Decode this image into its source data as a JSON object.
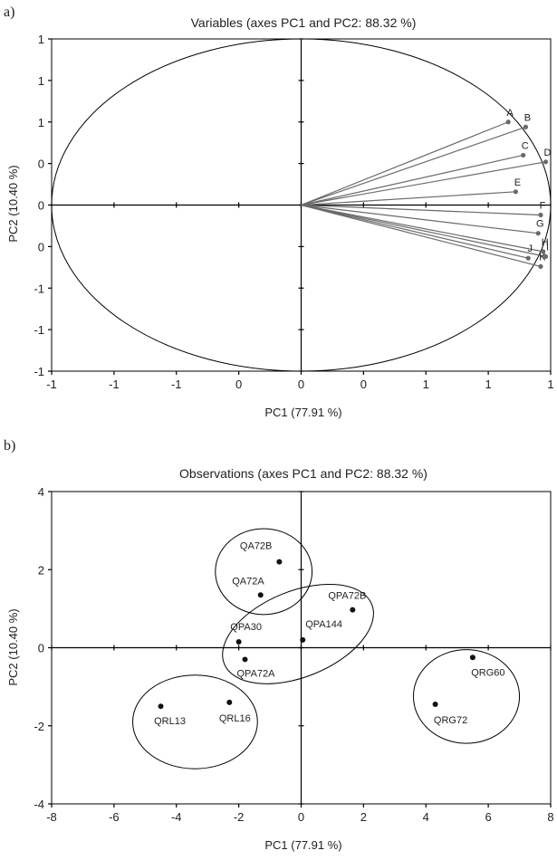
{
  "chart_data": [
    {
      "panel": "a)",
      "type": "scatter",
      "title": "Variables (axes PC1 and PC2: 88.32 %)",
      "xlabel": "PC1 (77.91 %)",
      "ylabel": "PC2 (10.40 %)",
      "xlim": [
        -1,
        1
      ],
      "ylim": [
        -1,
        1
      ],
      "x_tick_labels": [
        "-1",
        "-1",
        "-1",
        "0",
        "0",
        "0",
        "1",
        "1",
        "1"
      ],
      "y_tick_labels": [
        "1",
        "1",
        "1",
        "0",
        "0",
        "0",
        "-1",
        "-1",
        "-1"
      ],
      "correlation_circle": true,
      "grid": false,
      "points": [
        {
          "label": "A",
          "x": 0.83,
          "y": 0.5
        },
        {
          "label": "B",
          "x": 0.9,
          "y": 0.47
        },
        {
          "label": "C",
          "x": 0.89,
          "y": 0.3
        },
        {
          "label": "D",
          "x": 0.98,
          "y": 0.26
        },
        {
          "label": "E",
          "x": 0.86,
          "y": 0.08
        },
        {
          "label": "F",
          "x": 0.96,
          "y": -0.06
        },
        {
          "label": "G",
          "x": 0.95,
          "y": -0.17
        },
        {
          "label": "H",
          "x": 0.97,
          "y": -0.28
        },
        {
          "label": "I",
          "x": 0.98,
          "y": -0.31
        },
        {
          "label": "J",
          "x": 0.91,
          "y": -0.32
        },
        {
          "label": "K",
          "x": 0.96,
          "y": -0.37
        }
      ]
    },
    {
      "panel": "b)",
      "type": "scatter",
      "title": "Observations (axes PC1 and PC2: 88.32 %)",
      "xlabel": "PC1 (77.91 %)",
      "ylabel": "PC2 (10.40 %)",
      "xlim": [
        -8,
        8
      ],
      "ylim": [
        -4,
        4
      ],
      "x_ticks": [
        -8,
        -6,
        -4,
        -2,
        0,
        2,
        4,
        6,
        8
      ],
      "y_ticks": [
        -4,
        -2,
        0,
        2,
        4
      ],
      "grid": false,
      "points": [
        {
          "label": "QA72B",
          "x": -0.7,
          "y": 2.2
        },
        {
          "label": "QA72A",
          "x": -1.3,
          "y": 1.35
        },
        {
          "label": "QPA72B",
          "x": 1.65,
          "y": 0.97
        },
        {
          "label": "QPA30",
          "x": -2.0,
          "y": 0.15
        },
        {
          "label": "QPA144",
          "x": 0.05,
          "y": 0.2
        },
        {
          "label": "QPA72A",
          "x": -1.8,
          "y": -0.3
        },
        {
          "label": "QRG60",
          "x": 5.5,
          "y": -0.25
        },
        {
          "label": "QRG72",
          "x": 4.3,
          "y": -1.45
        },
        {
          "label": "QRL13",
          "x": -4.5,
          "y": -1.5
        },
        {
          "label": "QRL16",
          "x": -2.3,
          "y": -1.4
        }
      ],
      "group_ellipses": [
        {
          "members": [
            "QA72B",
            "QA72A"
          ],
          "cx": -1.2,
          "cy": 1.95,
          "rx": 1.55,
          "ry": 1.1,
          "angle": 0
        },
        {
          "members": [
            "QPA72B",
            "QPA30",
            "QPA144",
            "QPA72A"
          ],
          "cx": -0.1,
          "cy": 0.35,
          "rx": 2.55,
          "ry": 1.1,
          "angle": 22
        },
        {
          "members": [
            "QRG60",
            "QRG72"
          ],
          "cx": 5.3,
          "cy": -1.25,
          "rx": 1.7,
          "ry": 1.2,
          "angle": 0
        },
        {
          "members": [
            "QRL13",
            "QRL16"
          ],
          "cx": -3.4,
          "cy": -1.9,
          "rx": 2.0,
          "ry": 1.2,
          "angle": 0
        }
      ]
    }
  ]
}
